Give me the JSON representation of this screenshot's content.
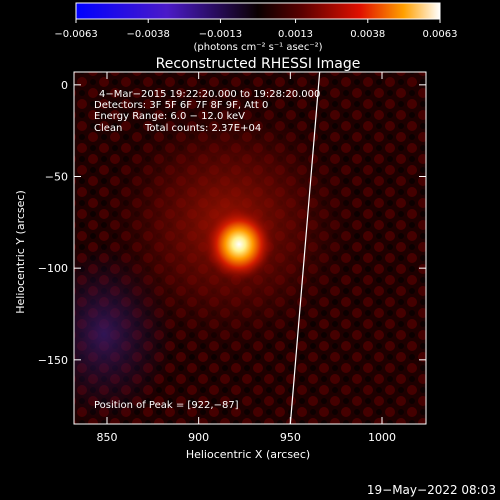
{
  "chart_data": {
    "type": "heatmap",
    "title": "Reconstructed RHESSI Image",
    "xlabel": "Heliocentric X (arcsec)",
    "ylabel": "Heliocentric Y (arcsec)",
    "xlim": [
      832,
      1024
    ],
    "ylim": [
      -185,
      7
    ],
    "x_ticks": [
      850,
      900,
      950,
      1000
    ],
    "y_ticks": [
      0,
      -50,
      -100,
      -150
    ],
    "x_tick_labels": [
      "850",
      "900",
      "950",
      "1000"
    ],
    "y_tick_labels": [
      "0",
      "−50",
      "−100",
      "−150"
    ],
    "colorbar": {
      "ticks": [
        -0.0063,
        -0.0038,
        -0.0013,
        0.0013,
        0.0038,
        0.0063
      ],
      "tick_labels": [
        "−0.0063",
        "−0.0038",
        "−0.0013",
        "0.0013",
        "0.0038",
        "0.0063"
      ],
      "unit_label": "(photons cm⁻² s⁻¹ asec⁻²)",
      "range": [
        -0.0063,
        0.0063
      ]
    },
    "annotations": {
      "time": "4−Mar−2015 19:22:20.000 to 19:28:20.000",
      "detectors": "Detectors: 3F 5F 6F 7F 8F 9F, Att 0",
      "energy": "Energy Range: 6.0 − 12.0 keV",
      "method": "Clean",
      "counts": "Total counts: 2.37E+04",
      "peak": "Position of Peak = [922,−87]"
    },
    "peak": {
      "x": 922,
      "y": -87
    },
    "limb_x_at_ymin": 950,
    "limb_x_at_ymax": 966
  },
  "footer": {
    "timestamp": "19−May−2022 08:03"
  },
  "colors": {
    "background": "#000000",
    "limb": "#ffffff",
    "text": "#ffffff"
  }
}
